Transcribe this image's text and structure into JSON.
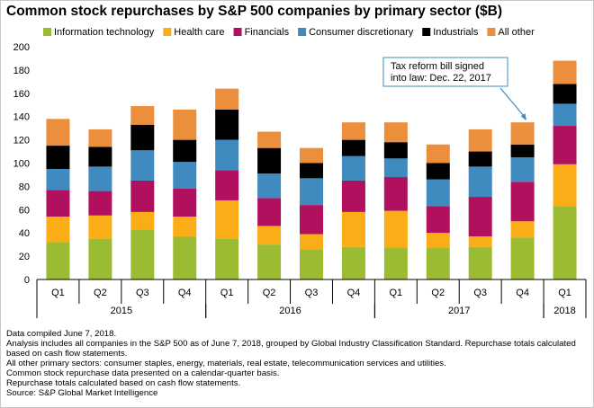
{
  "title": "Common stock repurchases by S&P 500 companies by primary sector ($B)",
  "annotation": {
    "lines": [
      "Tax reform bill signed",
      "into law: Dec. 22, 2017"
    ]
  },
  "notes": [
    "Data compiled June 7, 2018.",
    "Analysis includes all companies in the S&P 500 as of June 7, 2018, grouped by Global Industry Classification Standard. Repurchase totals calculated based on cash flow statements.",
    "All other primary sectors: consumer staples, energy, materials, real estate, telecommunication services and utilities.",
    "Common stock repurchase data presented on a calendar-quarter basis.",
    "Repurchase totals calculated based on cash flow statements.",
    "Source: S&P Global Market Intelligence"
  ],
  "colors": {
    "Information technology": "#9bbb32",
    "Health care": "#fbad18",
    "Financials": "#b0105d",
    "Consumer discretionary": "#3f8bbf",
    "Industrials": "#000000",
    "All other": "#ec8f3c"
  },
  "chart_data": {
    "type": "bar",
    "stacked": true,
    "title": "Common stock repurchases by S&P 500 companies by primary sector ($B)",
    "categories": [
      "Q1",
      "Q2",
      "Q3",
      "Q4",
      "Q1",
      "Q2",
      "Q3",
      "Q4",
      "Q1",
      "Q2",
      "Q3",
      "Q4",
      "Q1"
    ],
    "category_groups": [
      {
        "label": "2015",
        "span": 4
      },
      {
        "label": "2016",
        "span": 4
      },
      {
        "label": "2017",
        "span": 4
      },
      {
        "label": "2018",
        "span": 1
      }
    ],
    "ylim": [
      0,
      200
    ],
    "yticks": [
      0,
      20,
      40,
      60,
      80,
      100,
      120,
      140,
      160,
      180,
      200
    ],
    "grid": false,
    "legend": "top",
    "series": [
      {
        "name": "Information technology",
        "values": [
          32,
          35,
          43,
          37,
          35,
          30,
          26,
          28,
          27,
          27,
          28,
          36,
          63
        ]
      },
      {
        "name": "Health care",
        "values": [
          22,
          20,
          15,
          17,
          33,
          16,
          13,
          30,
          32,
          13,
          9,
          14,
          36
        ]
      },
      {
        "name": "Financials",
        "values": [
          23,
          21,
          27,
          24,
          26,
          24,
          25,
          27,
          29,
          23,
          34,
          34,
          33
        ]
      },
      {
        "name": "Consumer discretionary",
        "values": [
          18,
          21,
          26,
          23,
          26,
          21,
          23,
          21,
          16,
          23,
          26,
          21,
          19
        ]
      },
      {
        "name": "Industrials",
        "values": [
          20,
          17,
          22,
          19,
          26,
          22,
          13,
          14,
          14,
          14,
          13,
          11,
          17
        ]
      },
      {
        "name": "All other",
        "values": [
          23,
          15,
          16,
          26,
          18,
          14,
          13,
          15,
          17,
          16,
          19,
          19,
          20
        ]
      }
    ]
  }
}
